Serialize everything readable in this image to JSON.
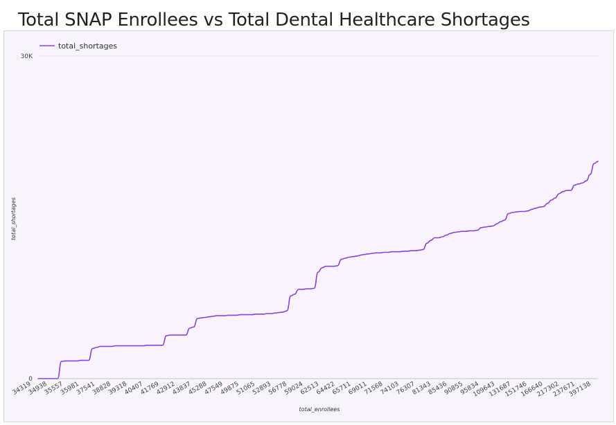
{
  "chart_data": {
    "type": "line",
    "title": "Total SNAP Enrollees vs Total Dental Healthcare  Shortages",
    "xlabel": "total_enrollees",
    "ylabel": "total_shortages",
    "ylim": [
      0,
      30000
    ],
    "y_ticks": [
      "0",
      "30K"
    ],
    "grid": true,
    "legend_position": "top-left",
    "series": [
      {
        "name": "total_shortages",
        "color": "#8e3fe0",
        "values": [
          0,
          0,
          0,
          0,
          0,
          0,
          1600,
          1650,
          1650,
          1650,
          1650,
          1700,
          1700,
          1700,
          2800,
          2900,
          3000,
          3000,
          3000,
          3000,
          3050,
          3050,
          3050,
          3050,
          3050,
          3050,
          3050,
          3050,
          3100,
          3100,
          3100,
          3100,
          3100,
          4000,
          4050,
          4050,
          4050,
          4050,
          4050,
          4700,
          4800,
          5600,
          5650,
          5700,
          5750,
          5800,
          5850,
          5850,
          5850,
          5900,
          5900,
          5900,
          5950,
          5950,
          5950,
          5950,
          6000,
          6000,
          6000,
          6050,
          6050,
          6100,
          6150,
          6200,
          6300,
          7700,
          7850,
          8300,
          8300,
          8350,
          8350,
          8400,
          9900,
          10300,
          10450,
          10450,
          10450,
          10500,
          11100,
          11200,
          11300,
          11350,
          11400,
          11500,
          11550,
          11600,
          11650,
          11700,
          11700,
          11750,
          11750,
          11800,
          11800,
          11800,
          11850,
          11850,
          11900,
          11900,
          11950,
          12000,
          12600,
          12850,
          13100,
          13100,
          13200,
          13350,
          13500,
          13600,
          13650,
          13700,
          13700,
          13750,
          13750,
          13800,
          14050,
          14100,
          14150,
          14200,
          14400,
          14600,
          14750,
          15350,
          15450,
          15500,
          15550,
          15550,
          15600,
          15750,
          15850,
          15950,
          16000,
          16300,
          16600,
          16800,
          17200,
          17400,
          17500,
          17500,
          18000,
          18100,
          18200,
          18400,
          19000,
          20000,
          20200
        ]
      }
    ],
    "x_ticks": [
      "34319",
      "34938",
      "35557",
      "35981",
      "37541",
      "38828",
      "39318",
      "40407",
      "41769",
      "42912",
      "43837",
      "45288",
      "47549",
      "49875",
      "51065",
      "52893",
      "56778",
      "59024",
      "62513",
      "64422",
      "65711",
      "69011",
      "71568",
      "74103",
      "76307",
      "81343",
      "85436",
      "90855",
      "95834",
      "109643",
      "131687",
      "151746",
      "166640",
      "217302",
      "237671",
      "397138"
    ]
  }
}
